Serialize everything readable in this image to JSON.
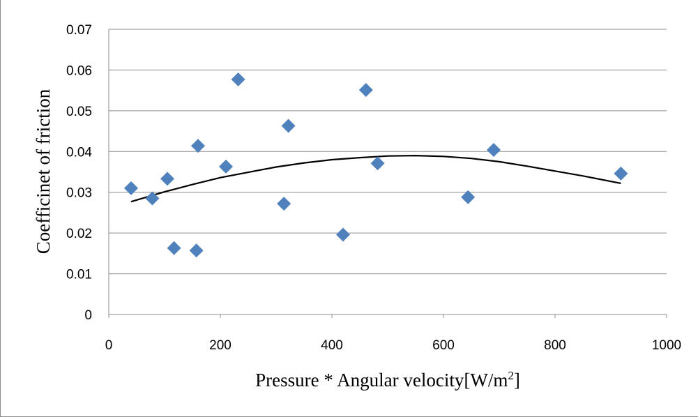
{
  "chart_data": {
    "type": "scatter",
    "xlabel": "Pressure * Angular velocity[W/m",
    "xlabel_superscript": "2",
    "xlabel_suffix": "]",
    "ylabel": "Coefficinet of friction",
    "xlim": [
      0,
      1000
    ],
    "ylim": [
      0,
      0.07
    ],
    "xticks": [
      "0",
      "200",
      "400",
      "600",
      "800",
      "1000"
    ],
    "yticks": [
      "0",
      "0.01",
      "0.02",
      "0.03",
      "0.04",
      "0.05",
      "0.06",
      "0.07"
    ],
    "grid": "horizontal",
    "legend": "none",
    "marker": "diamond",
    "marker_color": "#4f81bd",
    "trendline_color": "#000000",
    "points": [
      {
        "x": 40,
        "y": 0.031
      },
      {
        "x": 78,
        "y": 0.0285
      },
      {
        "x": 105,
        "y": 0.0333
      },
      {
        "x": 117,
        "y": 0.0163
      },
      {
        "x": 157,
        "y": 0.0157
      },
      {
        "x": 160,
        "y": 0.0414
      },
      {
        "x": 210,
        "y": 0.0363
      },
      {
        "x": 232,
        "y": 0.0577
      },
      {
        "x": 314,
        "y": 0.0272
      },
      {
        "x": 322,
        "y": 0.0463
      },
      {
        "x": 420,
        "y": 0.0196
      },
      {
        "x": 461,
        "y": 0.0551
      },
      {
        "x": 482,
        "y": 0.0371
      },
      {
        "x": 644,
        "y": 0.0288
      },
      {
        "x": 690,
        "y": 0.0404
      },
      {
        "x": 918,
        "y": 0.0346
      }
    ],
    "trendline": {
      "type": "polynomial-2",
      "x": [
        40,
        100,
        150,
        200,
        250,
        300,
        350,
        400,
        450,
        500,
        550,
        600,
        650,
        700,
        750,
        800,
        850,
        918
      ],
      "y": [
        0.0277,
        0.0301,
        0.0319,
        0.0336,
        0.0349,
        0.0362,
        0.0372,
        0.038,
        0.0385,
        0.0389,
        0.039,
        0.0388,
        0.0383,
        0.0375,
        0.0364,
        0.0352,
        0.034,
        0.0322
      ]
    }
  }
}
